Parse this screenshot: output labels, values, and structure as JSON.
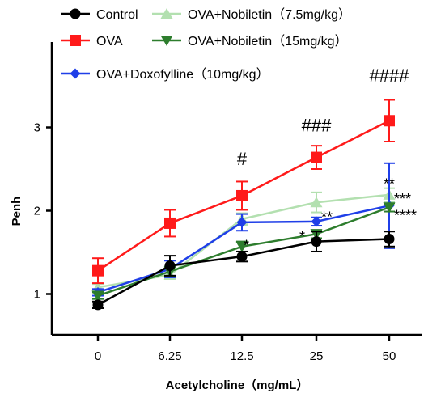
{
  "chart_data": {
    "type": "line",
    "title": "",
    "xlabel": "Acetylcholine（mg/mL）",
    "ylabel": "Penh",
    "categories": [
      "0",
      "6.25",
      "12.5",
      "25",
      "50"
    ],
    "yticks": [
      "1",
      "2",
      "3"
    ],
    "ylim": [
      0.6,
      3.6
    ],
    "grid": false,
    "legend_position": "top",
    "series": [
      {
        "name": "Control",
        "color": "#000000",
        "marker": "circle",
        "values": [
          0.87,
          1.34,
          1.45,
          1.63,
          1.66
        ],
        "errors": [
          0.04,
          0.12,
          0.06,
          0.12,
          0.09
        ]
      },
      {
        "name": "OVA",
        "color": "#ff1a1a",
        "marker": "square",
        "values": [
          1.28,
          1.85,
          2.18,
          2.64,
          3.08
        ],
        "errors": [
          0.15,
          0.16,
          0.17,
          0.14,
          0.25
        ]
      },
      {
        "name": "OVA+Doxofylline（10mg/kg）",
        "color": "#1f3fe8",
        "marker": "diamond",
        "values": [
          1.02,
          1.3,
          1.86,
          1.87,
          2.06
        ],
        "errors": [
          0.04,
          0.1,
          0.1,
          0.05,
          0.51
        ]
      },
      {
        "name": "OVA+Nobiletin（7.5mg/kg）",
        "color": "#b3e0b0",
        "marker": "triangle-up",
        "values": [
          1.08,
          1.23,
          1.9,
          2.1,
          2.19
        ],
        "errors": [
          0.04,
          0.05,
          0.07,
          0.12,
          0.08
        ]
      },
      {
        "name": "OVA+Nobiletin（15mg/kg）",
        "color": "#2d7d2d",
        "marker": "triangle-down",
        "values": [
          0.98,
          1.27,
          1.57,
          1.72,
          2.04
        ],
        "errors": [
          0.04,
          0.06,
          0.06,
          0.05,
          0.05
        ]
      }
    ],
    "annotations": [
      {
        "text": "#",
        "category": "12.5",
        "y": 2.55
      },
      {
        "text": "###",
        "category": "25",
        "y": 2.95
      },
      {
        "text": "####",
        "category": "50",
        "y": 3.55
      },
      {
        "text": "*",
        "category": "12.5",
        "y": 1.62,
        "series": "OVA+Nobiletin（15mg/kg）"
      },
      {
        "text": "*",
        "category": "25",
        "y": 1.73,
        "series": "OVA+Nobiletin（15mg/kg）"
      },
      {
        "text": "**",
        "category": "25",
        "y": 1.96,
        "series": "OVA+Doxofylline（10mg/kg）"
      },
      {
        "text": "**",
        "category": "50",
        "y": 2.36,
        "series": "OVA+Doxofylline（10mg/kg）"
      },
      {
        "text": "***",
        "category": "50",
        "y": 2.18,
        "series": "OVA+Nobiletin（7.5mg/kg）"
      },
      {
        "text": "****",
        "category": "50",
        "y": 1.98,
        "series": "OVA+Nobiletin（15mg/kg）"
      }
    ]
  }
}
